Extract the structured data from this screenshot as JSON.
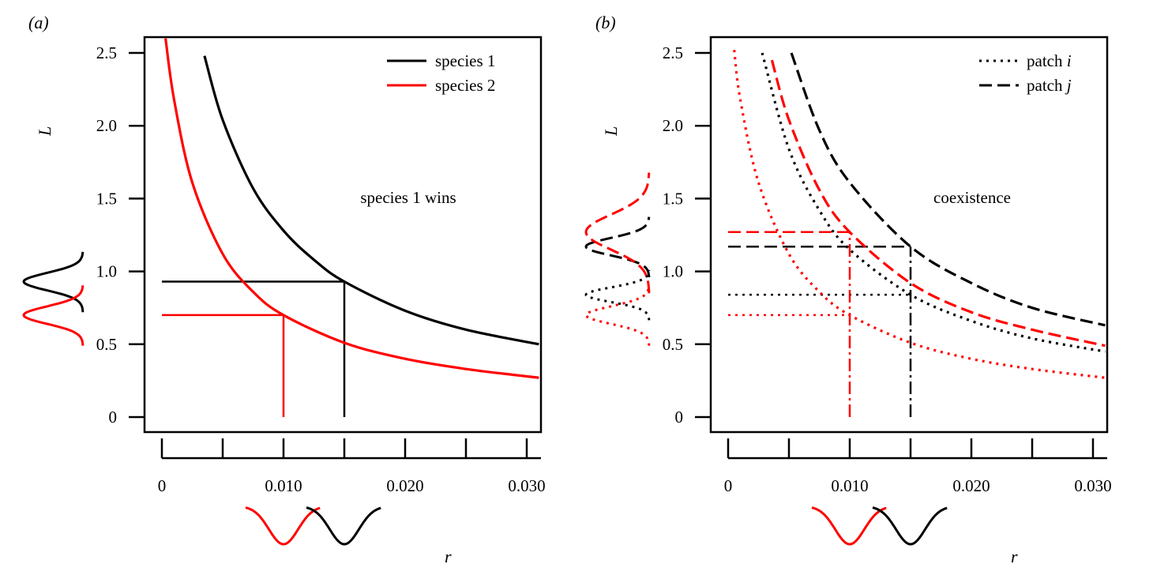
{
  "colors": {
    "species_1": "#000000",
    "species_2": "#ff0000"
  },
  "chart_data": [
    {
      "type": "line",
      "panel_label": "(a)",
      "xlabel": "r",
      "ylabel": "L",
      "xlim": [
        0,
        0.031
      ],
      "ylim": [
        0,
        2.6
      ],
      "x_ticks": [
        0,
        0.005,
        0.01,
        0.015,
        0.02,
        0.025,
        0.03
      ],
      "x_tick_labels": [
        "0",
        "",
        "0.010",
        "",
        "0.020",
        "",
        "0.030"
      ],
      "y_ticks": [
        0,
        0.5,
        1.0,
        1.5,
        2.0,
        2.5
      ],
      "y_tick_labels": [
        "0",
        "0.5",
        "1.0",
        "1.5",
        "2.0",
        "2.5"
      ],
      "grid": false,
      "legend_position": "top-right",
      "annotation": "species 1 wins",
      "series": [
        {
          "name": "species 1",
          "color": "#000000",
          "style": "solid",
          "points": [
            [
              0.0035,
              2.48
            ],
            [
              0.005,
              2.04
            ],
            [
              0.0075,
              1.57
            ],
            [
              0.01,
              1.28
            ],
            [
              0.0125,
              1.08
            ],
            [
              0.015,
              0.93
            ],
            [
              0.02,
              0.73
            ],
            [
              0.025,
              0.6
            ],
            [
              0.031,
              0.5
            ]
          ]
        },
        {
          "name": "species 2",
          "color": "#ff0000",
          "style": "solid",
          "points": [
            [
              0.0003,
              2.6
            ],
            [
              0.001,
              2.18
            ],
            [
              0.0025,
              1.61
            ],
            [
              0.005,
              1.12
            ],
            [
              0.0075,
              0.86
            ],
            [
              0.01,
              0.7
            ],
            [
              0.015,
              0.51
            ],
            [
              0.02,
              0.4
            ],
            [
              0.025,
              0.33
            ],
            [
              0.031,
              0.27
            ]
          ]
        }
      ],
      "reference_lines": [
        {
          "color": "#000000",
          "style": "solid",
          "r": 0.015,
          "L": 0.93
        },
        {
          "color": "#ff0000",
          "style": "solid",
          "r": 0.01,
          "L": 0.7
        }
      ],
      "marginals_L": [
        {
          "color": "#000000",
          "style": "solid",
          "mean": 0.93,
          "sd": 0.06
        },
        {
          "color": "#ff0000",
          "style": "solid",
          "mean": 0.7,
          "sd": 0.06
        }
      ],
      "marginals_r": [
        {
          "color": "#ff0000",
          "mean": 0.01,
          "sd": 0.0012
        },
        {
          "color": "#000000",
          "mean": 0.015,
          "sd": 0.0012
        }
      ]
    },
    {
      "type": "line",
      "panel_label": "(b)",
      "xlabel": "r",
      "ylabel": "L",
      "xlim": [
        0,
        0.031
      ],
      "ylim": [
        0,
        2.6
      ],
      "x_ticks": [
        0,
        0.005,
        0.01,
        0.015,
        0.02,
        0.025,
        0.03
      ],
      "x_tick_labels": [
        "0",
        "",
        "0.010",
        "",
        "0.020",
        "",
        "0.030"
      ],
      "y_ticks": [
        0,
        0.5,
        1.0,
        1.5,
        2.0,
        2.5
      ],
      "y_tick_labels": [
        "0",
        "0.5",
        "1.0",
        "1.5",
        "2.0",
        "2.5"
      ],
      "grid": false,
      "legend_position": "top-right",
      "legend": [
        {
          "label": "patch ",
          "italic": "i",
          "style": "dotted"
        },
        {
          "label": "patch ",
          "italic": "j",
          "style": "dashed"
        }
      ],
      "annotation": "coexistence",
      "series": [
        {
          "color": "#000000",
          "style": "dotted",
          "points": [
            [
              0.0028,
              2.5
            ],
            [
              0.005,
              1.84
            ],
            [
              0.0075,
              1.42
            ],
            [
              0.01,
              1.15
            ],
            [
              0.015,
              0.84
            ],
            [
              0.02,
              0.66
            ],
            [
              0.025,
              0.54
            ],
            [
              0.031,
              0.45
            ]
          ]
        },
        {
          "color": "#000000",
          "style": "dashed",
          "points": [
            [
              0.0052,
              2.5
            ],
            [
              0.0075,
              1.97
            ],
            [
              0.01,
              1.61
            ],
            [
              0.015,
              1.17
            ],
            [
              0.02,
              0.92
            ],
            [
              0.025,
              0.75
            ],
            [
              0.031,
              0.63
            ]
          ]
        },
        {
          "color": "#ff0000",
          "style": "dotted",
          "points": [
            [
              0.0005,
              2.52
            ],
            [
              0.001,
              2.18
            ],
            [
              0.0025,
              1.61
            ],
            [
              0.005,
              1.12
            ],
            [
              0.0075,
              0.86
            ],
            [
              0.01,
              0.7
            ],
            [
              0.015,
              0.51
            ],
            [
              0.02,
              0.4
            ],
            [
              0.025,
              0.33
            ],
            [
              0.031,
              0.27
            ]
          ]
        },
        {
          "color": "#ff0000",
          "style": "dashed",
          "points": [
            [
              0.0036,
              2.45
            ],
            [
              0.005,
              2.04
            ],
            [
              0.0075,
              1.56
            ],
            [
              0.01,
              1.27
            ],
            [
              0.015,
              0.92
            ],
            [
              0.02,
              0.72
            ],
            [
              0.025,
              0.6
            ],
            [
              0.031,
              0.49
            ]
          ]
        }
      ],
      "reference_lines": [
        {
          "color": "#000000",
          "style": "dotted",
          "r": 0.015,
          "L": 0.84
        },
        {
          "color": "#000000",
          "style": "dashed",
          "r": 0.015,
          "L": 1.17
        },
        {
          "color": "#ff0000",
          "style": "dotted",
          "r": 0.01,
          "L": 0.7
        },
        {
          "color": "#ff0000",
          "style": "dashed",
          "r": 0.01,
          "L": 1.27
        }
      ],
      "marginals_L": [
        {
          "color": "#000000",
          "style": "dotted",
          "mean": 0.84,
          "sd": 0.05
        },
        {
          "color": "#ff0000",
          "style": "dotted",
          "mean": 0.7,
          "sd": 0.06
        },
        {
          "color": "#000000",
          "style": "dashed",
          "mean": 1.17,
          "sd": 0.06
        },
        {
          "color": "#ff0000",
          "style": "dashed",
          "mean": 1.27,
          "sd": 0.12
        }
      ],
      "marginals_r": [
        {
          "color": "#ff0000",
          "mean": 0.01,
          "sd": 0.0012
        },
        {
          "color": "#000000",
          "mean": 0.015,
          "sd": 0.0012
        }
      ]
    }
  ]
}
